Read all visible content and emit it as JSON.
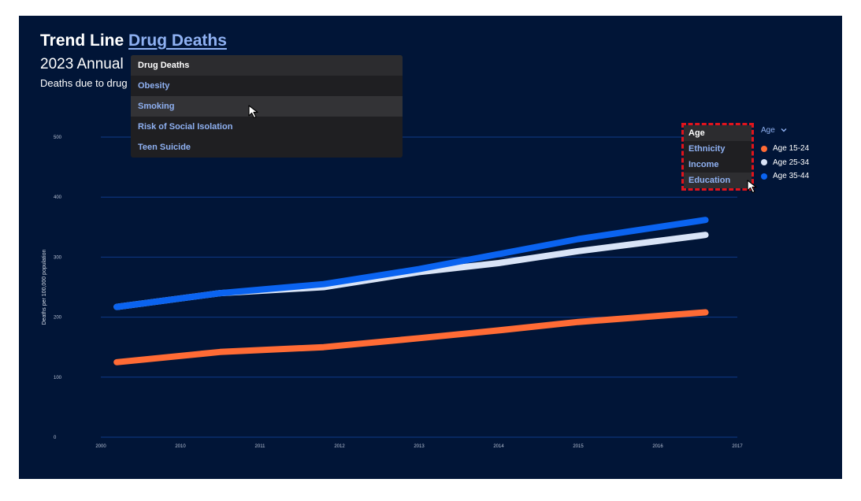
{
  "header": {
    "title_prefix": "Trend Line",
    "title_link": "Drug Deaths",
    "subtitle": "2023 Annual",
    "description": "Deaths due to drug"
  },
  "topic_menu": {
    "items": [
      "Drug Deaths",
      "Obesity",
      "Smoking",
      "Risk of Social Isolation",
      "Teen Suicide"
    ],
    "selected": "Drug Deaths",
    "hovered": "Smoking"
  },
  "filter_menu": {
    "items": [
      "Age",
      "Ethnicity",
      "Income",
      "Education"
    ],
    "selected": "Age",
    "hovered": "Education"
  },
  "legend_toggle": {
    "label": "Age",
    "icon": "chevron-down-icon"
  },
  "colors": {
    "background": "#011537",
    "gridline": "#0f3a8a",
    "age_15_24": "#ff6b35",
    "age_25_34": "#d9e4f7",
    "age_35_44": "#0a63f0",
    "highlight": "#e0141c"
  },
  "chart_data": {
    "type": "line",
    "ylabel": "Deaths per 100,000 population",
    "xlabel": "",
    "ylim": [
      0,
      500
    ],
    "y_ticks": [
      "0",
      "100",
      "200",
      "300",
      "400",
      "500"
    ],
    "x_ticks": [
      "2000",
      "2010",
      "2011",
      "2012",
      "2013",
      "2014",
      "2015",
      "2016",
      "2017"
    ],
    "x": [
      2009.2,
      2010.5,
      2011.8,
      2013.0,
      2014.0,
      2015.0,
      2016.6
    ],
    "grid": true,
    "legend_position": "right",
    "series": [
      {
        "name": "Age 15-24",
        "color": "#ff6b35",
        "values": [
          125,
          142,
          150,
          165,
          178,
          192,
          208
        ]
      },
      {
        "name": "Age 25-34",
        "color": "#d9e4f7",
        "values": [
          217,
          240,
          250,
          275,
          290,
          310,
          337
        ]
      },
      {
        "name": "Age 35-44",
        "color": "#0a63f0",
        "values": [
          217,
          240,
          255,
          280,
          305,
          330,
          362
        ]
      }
    ]
  }
}
